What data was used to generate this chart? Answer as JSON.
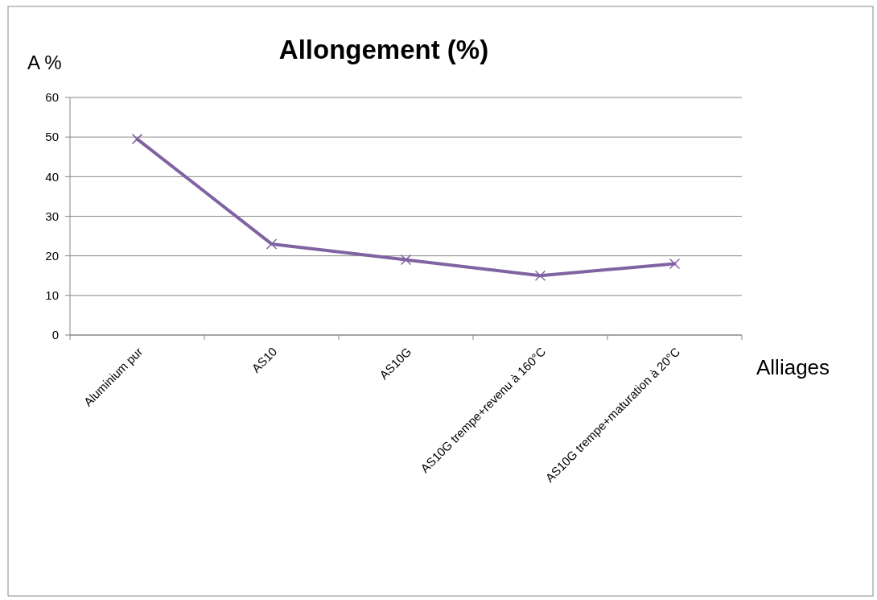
{
  "chart_data": {
    "type": "line",
    "title": "Allongement (%)",
    "ylabel": "A %",
    "xlabel": "Alliages",
    "categories": [
      "Aluminium pur",
      "AS10",
      "AS10G",
      "AS10G trempe+revenu à 160°C",
      "AS10G trempe+maturation à 20°C"
    ],
    "series": [
      {
        "color": "#8064a2",
        "values": [
          49.5,
          23,
          19,
          15,
          18
        ]
      }
    ],
    "ylim": [
      0,
      60
    ],
    "yticks": [
      0,
      10,
      20,
      30,
      40,
      50,
      60
    ],
    "grid": "y",
    "marker": "cross",
    "line_style": "solid"
  }
}
